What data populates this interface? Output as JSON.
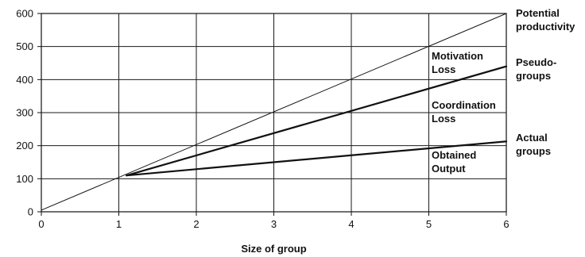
{
  "chart_data": {
    "type": "line",
    "title": "",
    "xlabel": "Size of group",
    "ylabel": "",
    "xlim": [
      0,
      6
    ],
    "ylim": [
      0,
      600
    ],
    "x_ticks": [
      "0",
      "1",
      "2",
      "3",
      "4",
      "5",
      "6"
    ],
    "y_ticks": [
      "0",
      "100",
      "200",
      "300",
      "400",
      "500",
      "600"
    ],
    "grid": true,
    "series": [
      {
        "name": "Potential productivity",
        "label_lines": [
          "Potential",
          "productivity"
        ],
        "x": [
          0,
          6
        ],
        "y": [
          5,
          600
        ],
        "stroke_width": 1
      },
      {
        "name": "Pseudo-groups",
        "label_lines": [
          "Pseudo-",
          "groups"
        ],
        "x": [
          1.1,
          6
        ],
        "y": [
          110,
          440
        ],
        "stroke_width": 2.2
      },
      {
        "name": "Actual groups",
        "label_lines": [
          "Actual",
          "groups"
        ],
        "x": [
          1.1,
          6
        ],
        "y": [
          110,
          213
        ],
        "stroke_width": 2.2
      }
    ],
    "annotations": [
      {
        "lines": [
          "Motivation",
          "Loss"
        ]
      },
      {
        "lines": [
          "Coordination",
          "Loss"
        ]
      },
      {
        "lines": [
          "Obtained",
          "Output"
        ]
      }
    ]
  }
}
